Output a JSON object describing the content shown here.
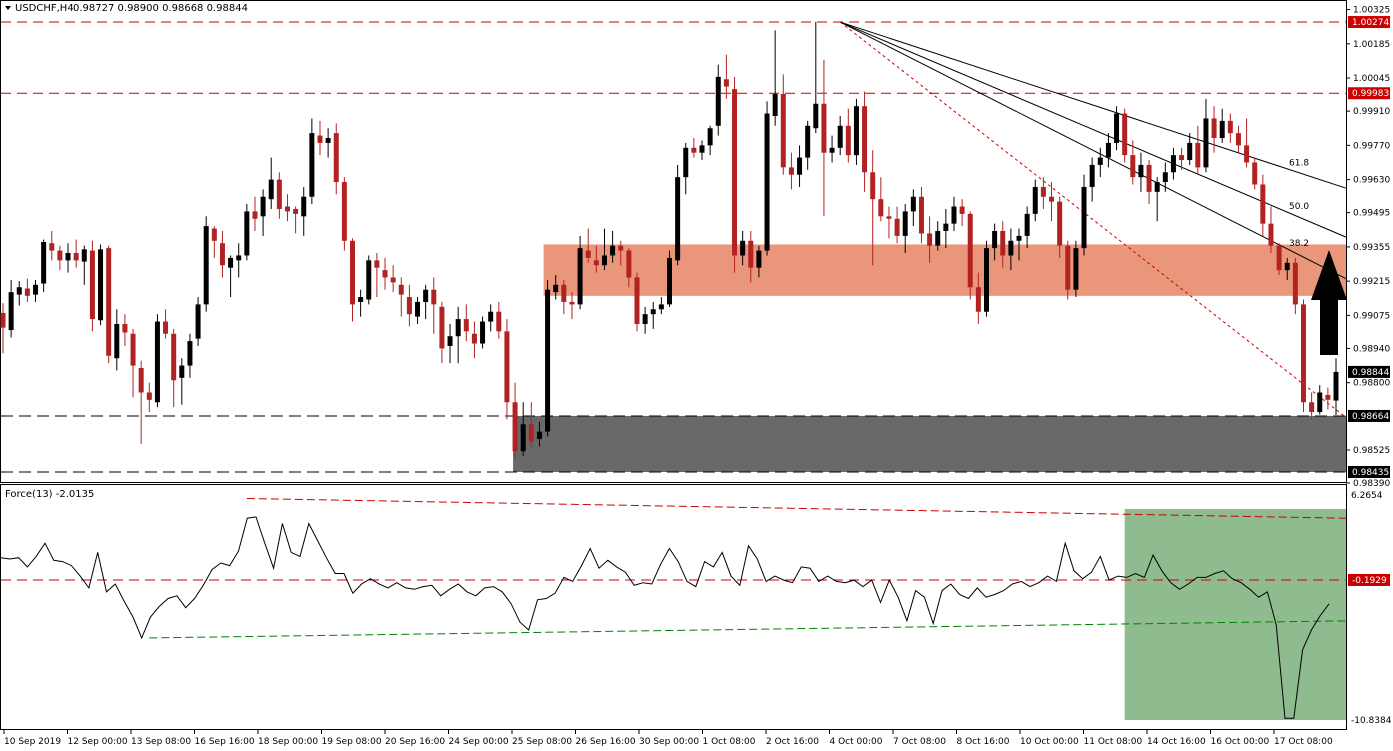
{
  "header": {
    "symbol": "USDCHF,H4",
    "ohlc": "0.98727 0.98900 0.98668 0.98844"
  },
  "force_header": "Force(13) -2.0135",
  "price_axis": {
    "ticks": [
      "1.00325",
      "1.00185",
      "1.00045",
      "0.99910",
      "0.99770",
      "0.99630",
      "0.99495",
      "0.99355",
      "0.99215",
      "0.99075",
      "0.98940",
      "0.98800",
      "0.98525",
      "0.98390"
    ],
    "badges": [
      {
        "text": "1.00274",
        "kind": "red"
      },
      {
        "text": "0.99983",
        "kind": "red"
      },
      {
        "text": "0.98844",
        "kind": "black"
      },
      {
        "text": "0.98664",
        "kind": "black"
      },
      {
        "text": "0.98435",
        "kind": "black"
      }
    ]
  },
  "force_axis": {
    "ticks": [
      "6.2654",
      "-10.8384"
    ],
    "badge": {
      "text": "-0.1929",
      "kind": "red"
    }
  },
  "time_axis": [
    "10 Sep 2019",
    "12 Sep 00:00",
    "13 Sep 08:00",
    "16 Sep 16:00",
    "18 Sep 00:00",
    "19 Sep 08:00",
    "20 Sep 16:00",
    "24 Sep 00:00",
    "25 Sep 08:00",
    "26 Sep 16:00",
    "30 Sep 00:00",
    "1 Oct 08:00",
    "2 Oct 16:00",
    "4 Oct 00:00",
    "7 Oct 08:00",
    "8 Oct 16:00",
    "10 Oct 00:00",
    "11 Oct 08:00",
    "14 Oct 16:00",
    "16 Oct 00:00",
    "17 Oct 08:00"
  ],
  "fib_labels": [
    "38.2",
    "50.0",
    "61.8"
  ],
  "colors": {
    "bull": "#000000",
    "bear": "#b22222",
    "resistance_zone": "#e9967a",
    "support_zone": "#696969",
    "force_zone": "#8fbc8f",
    "level_red": "#cc0000",
    "trend_green": "#008000"
  },
  "chart_data": [
    {
      "type": "candlestick",
      "title": "USDCHF,H4",
      "ylim": [
        0.9839,
        1.0036
      ],
      "levels": [
        1.00274,
        0.99983,
        0.98664,
        0.98435
      ],
      "zones": [
        {
          "name": "resistance",
          "from": 0.99155,
          "to": 0.99365
        },
        {
          "name": "support",
          "from": 0.98435,
          "to": 0.98664
        }
      ],
      "fan": {
        "origin_price": 1.00274,
        "fibs": [
          "38.2",
          "50.0",
          "61.8"
        ],
        "end_prices": [
          0.99225,
          0.99395,
          0.99595
        ]
      },
      "arrow": "up",
      "candles": [
        [
          0.99085,
          0.99125,
          0.9892,
          0.99025
        ],
        [
          0.99015,
          0.9922,
          0.98985,
          0.9917
        ],
        [
          0.9916,
          0.99215,
          0.99115,
          0.9919
        ],
        [
          0.99185,
          0.99225,
          0.9913,
          0.99155
        ],
        [
          0.9916,
          0.9922,
          0.9913,
          0.992
        ],
        [
          0.99205,
          0.99385,
          0.9917,
          0.99375
        ],
        [
          0.9937,
          0.9942,
          0.993,
          0.9934
        ],
        [
          0.9934,
          0.9936,
          0.9926,
          0.993
        ],
        [
          0.993,
          0.9937,
          0.9925,
          0.9933
        ],
        [
          0.9933,
          0.99385,
          0.9927,
          0.993
        ],
        [
          0.99295,
          0.9936,
          0.992,
          0.99345
        ],
        [
          0.9934,
          0.9938,
          0.9901,
          0.9906
        ],
        [
          0.99055,
          0.99365,
          0.99035,
          0.99345
        ],
        [
          0.9935,
          0.9936,
          0.9888,
          0.9891
        ],
        [
          0.989,
          0.991,
          0.9885,
          0.9904
        ],
        [
          0.9904,
          0.9908,
          0.9895,
          0.99005
        ],
        [
          0.99,
          0.9902,
          0.9874,
          0.9887
        ],
        [
          0.9886,
          0.9889,
          0.9855,
          0.9876
        ],
        [
          0.9876,
          0.988,
          0.9868,
          0.9873
        ],
        [
          0.9872,
          0.9908,
          0.987,
          0.9905
        ],
        [
          0.9905,
          0.991,
          0.9898,
          0.99
        ],
        [
          0.99,
          0.9902,
          0.987,
          0.9881
        ],
        [
          0.9882,
          0.989,
          0.9871,
          0.9887
        ],
        [
          0.9887,
          0.99,
          0.9882,
          0.9897
        ],
        [
          0.9898,
          0.9915,
          0.9895,
          0.9912
        ],
        [
          0.9912,
          0.9948,
          0.9909,
          0.9944
        ],
        [
          0.9943,
          0.9944,
          0.9931,
          0.9938
        ],
        [
          0.9937,
          0.9942,
          0.9923,
          0.9928
        ],
        [
          0.9927,
          0.9932,
          0.9915,
          0.9931
        ],
        [
          0.993,
          0.9937,
          0.9923,
          0.9932
        ],
        [
          0.9932,
          0.9953,
          0.993,
          0.995
        ],
        [
          0.995,
          0.9956,
          0.9942,
          0.9947
        ],
        [
          0.9948,
          0.9959,
          0.994,
          0.9956
        ],
        [
          0.9955,
          0.9972,
          0.9951,
          0.9963
        ],
        [
          0.9963,
          0.9966,
          0.9947,
          0.9951
        ],
        [
          0.9952,
          0.9957,
          0.9946,
          0.995
        ],
        [
          0.9951,
          0.9952,
          0.9941,
          0.9949
        ],
        [
          0.9948,
          0.996,
          0.994,
          0.9956
        ],
        [
          0.9956,
          0.9988,
          0.9953,
          0.9982
        ],
        [
          0.9981,
          0.9987,
          0.9973,
          0.9978
        ],
        [
          0.9978,
          0.9984,
          0.9972,
          0.998
        ],
        [
          0.9982,
          0.9986,
          0.9957,
          0.9962
        ],
        [
          0.9962,
          0.9964,
          0.9934,
          0.9938
        ],
        [
          0.9938,
          0.9939,
          0.9905,
          0.9912
        ],
        [
          0.9913,
          0.9918,
          0.9907,
          0.9915
        ],
        [
          0.9914,
          0.9932,
          0.9912,
          0.993
        ],
        [
          0.993,
          0.9933,
          0.9915,
          0.9927
        ],
        [
          0.9926,
          0.9931,
          0.9918,
          0.9923
        ],
        [
          0.9923,
          0.9928,
          0.9917,
          0.9921
        ],
        [
          0.992,
          0.9923,
          0.9907,
          0.9916
        ],
        [
          0.9915,
          0.992,
          0.9903,
          0.9908
        ],
        [
          0.9907,
          0.9915,
          0.9904,
          0.9913
        ],
        [
          0.9913,
          0.992,
          0.9906,
          0.9918
        ],
        [
          0.9918,
          0.9923,
          0.99,
          0.9912
        ],
        [
          0.9911,
          0.9913,
          0.9888,
          0.9894
        ],
        [
          0.9895,
          0.9904,
          0.9888,
          0.9899
        ],
        [
          0.9899,
          0.9911,
          0.9888,
          0.9906
        ],
        [
          0.9906,
          0.9912,
          0.9897,
          0.9901
        ],
        [
          0.99,
          0.9905,
          0.989,
          0.9896
        ],
        [
          0.9896,
          0.9907,
          0.9894,
          0.9905
        ],
        [
          0.9905,
          0.9912,
          0.9901,
          0.9909
        ],
        [
          0.9909,
          0.9913,
          0.9898,
          0.9901
        ],
        [
          0.9901,
          0.9906,
          0.9865,
          0.9872
        ],
        [
          0.9872,
          0.988,
          0.9849,
          0.9852
        ],
        [
          0.9852,
          0.9872,
          0.985,
          0.9863
        ],
        [
          0.9863,
          0.9872,
          0.9853,
          0.9856
        ],
        [
          0.9857,
          0.9864,
          0.9854,
          0.986
        ],
        [
          0.986,
          0.9922,
          0.9858,
          0.9918
        ],
        [
          0.9917,
          0.9924,
          0.9914,
          0.992
        ],
        [
          0.992,
          0.9922,
          0.9908,
          0.9913
        ],
        [
          0.9913,
          0.9917,
          0.9906,
          0.9912
        ],
        [
          0.9912,
          0.994,
          0.991,
          0.9935
        ],
        [
          0.9934,
          0.9943,
          0.9929,
          0.9931
        ],
        [
          0.993,
          0.9936,
          0.9925,
          0.9928
        ],
        [
          0.9928,
          0.9943,
          0.9926,
          0.9932
        ],
        [
          0.9932,
          0.9942,
          0.9929,
          0.9936
        ],
        [
          0.9936,
          0.9938,
          0.9928,
          0.9934
        ],
        [
          0.9934,
          0.9935,
          0.9919,
          0.9923
        ],
        [
          0.9923,
          0.9925,
          0.9901,
          0.9904
        ],
        [
          0.9904,
          0.9911,
          0.99,
          0.9908
        ],
        [
          0.9908,
          0.9913,
          0.9902,
          0.991
        ],
        [
          0.991,
          0.9915,
          0.9908,
          0.9912
        ],
        [
          0.9912,
          0.9934,
          0.9911,
          0.9931
        ],
        [
          0.993,
          0.9969,
          0.9928,
          0.9964
        ],
        [
          0.9964,
          0.9978,
          0.9957,
          0.9976
        ],
        [
          0.9976,
          0.998,
          0.9972,
          0.9974
        ],
        [
          0.9974,
          0.9979,
          0.9971,
          0.9977
        ],
        [
          0.9977,
          0.9985,
          0.9973,
          0.9984
        ],
        [
          0.9985,
          1.001,
          0.9981,
          1.0005
        ],
        [
          1.0004,
          1.0014,
          0.9996,
          1.0001
        ],
        [
          1.0,
          1.0005,
          0.9925,
          0.9932
        ],
        [
          0.9932,
          0.9942,
          0.9928,
          0.9938
        ],
        [
          0.9938,
          0.9942,
          0.9921,
          0.9927
        ],
        [
          0.9927,
          0.9936,
          0.9923,
          0.9934
        ],
        [
          0.9934,
          0.9995,
          0.9932,
          0.999
        ],
        [
          0.9989,
          1.0024,
          0.9985,
          0.9998
        ],
        [
          0.9998,
          1.0006,
          0.9965,
          0.9968
        ],
        [
          0.9968,
          0.9974,
          0.9959,
          0.9965
        ],
        [
          0.9965,
          0.9977,
          0.996,
          0.9972
        ],
        [
          0.9972,
          0.9987,
          0.9967,
          0.9985
        ],
        [
          0.9984,
          1.00274,
          0.9982,
          0.9994
        ],
        [
          0.9994,
          1.0012,
          0.9948,
          0.9974
        ],
        [
          0.9974,
          0.9981,
          0.997,
          0.9976
        ],
        [
          0.9976,
          0.9989,
          0.9973,
          0.9985
        ],
        [
          0.9985,
          0.9992,
          0.997,
          0.9973
        ],
        [
          0.9973,
          0.9996,
          0.9969,
          0.9993
        ],
        [
          0.9993,
          0.9999,
          0.9958,
          0.9966
        ],
        [
          0.9966,
          0.9975,
          0.9928,
          0.9955
        ],
        [
          0.9955,
          0.9964,
          0.9946,
          0.9948
        ],
        [
          0.9948,
          0.9952,
          0.9939,
          0.9947
        ],
        [
          0.9947,
          0.9952,
          0.9937,
          0.994
        ],
        [
          0.994,
          0.9953,
          0.9933,
          0.995
        ],
        [
          0.995,
          0.9959,
          0.9944,
          0.9956
        ],
        [
          0.9956,
          0.996,
          0.9937,
          0.9941
        ],
        [
          0.9941,
          0.9948,
          0.9929,
          0.9936
        ],
        [
          0.9936,
          0.9946,
          0.9934,
          0.9942
        ],
        [
          0.9942,
          0.9951,
          0.9935,
          0.9945
        ],
        [
          0.9945,
          0.9956,
          0.9942,
          0.9952
        ],
        [
          0.9952,
          0.9955,
          0.9944,
          0.9949
        ],
        [
          0.9949,
          0.995,
          0.9914,
          0.9919
        ],
        [
          0.9919,
          0.9925,
          0.9904,
          0.9909
        ],
        [
          0.9909,
          0.9938,
          0.9907,
          0.9935
        ],
        [
          0.9935,
          0.9945,
          0.993,
          0.9942
        ],
        [
          0.9942,
          0.9946,
          0.9927,
          0.9932
        ],
        [
          0.9932,
          0.9943,
          0.9926,
          0.9938
        ],
        [
          0.9938,
          0.9943,
          0.993,
          0.994
        ],
        [
          0.994,
          0.9952,
          0.9935,
          0.9949
        ],
        [
          0.9949,
          0.9963,
          0.9946,
          0.996
        ],
        [
          0.996,
          0.9964,
          0.9951,
          0.9956
        ],
        [
          0.9956,
          0.9962,
          0.9946,
          0.9954
        ],
        [
          0.9954,
          0.9956,
          0.9931,
          0.9936
        ],
        [
          0.9936,
          0.9938,
          0.9914,
          0.9918
        ],
        [
          0.9918,
          0.9938,
          0.9915,
          0.9935
        ],
        [
          0.9935,
          0.9965,
          0.9932,
          0.996
        ],
        [
          0.996,
          0.9972,
          0.9954,
          0.9969
        ],
        [
          0.9969,
          0.9976,
          0.9964,
          0.9972
        ],
        [
          0.9972,
          0.9982,
          0.9968,
          0.9978
        ],
        [
          0.9978,
          0.9993,
          0.9975,
          0.999
        ],
        [
          0.999,
          0.9992,
          0.997,
          0.9973
        ],
        [
          0.9973,
          0.9979,
          0.9961,
          0.9964
        ],
        [
          0.9964,
          0.9974,
          0.9958,
          0.9969
        ],
        [
          0.9969,
          0.9971,
          0.9953,
          0.9958
        ],
        [
          0.9958,
          0.9964,
          0.9946,
          0.9962
        ],
        [
          0.9962,
          0.997,
          0.9958,
          0.9966
        ],
        [
          0.9966,
          0.9976,
          0.9963,
          0.9973
        ],
        [
          0.9973,
          0.9976,
          0.9967,
          0.9971
        ],
        [
          0.9971,
          0.9982,
          0.9969,
          0.9978
        ],
        [
          0.9978,
          0.9985,
          0.9965,
          0.9968
        ],
        [
          0.9968,
          0.9996,
          0.9966,
          0.9988
        ],
        [
          0.9988,
          0.9993,
          0.9974,
          0.998
        ],
        [
          0.998,
          0.9992,
          0.9978,
          0.9987
        ],
        [
          0.9987,
          0.999,
          0.9978,
          0.9982
        ],
        [
          0.9982,
          0.9985,
          0.9974,
          0.9977
        ],
        [
          0.9977,
          0.9988,
          0.9968,
          0.997
        ],
        [
          0.997,
          0.9972,
          0.9959,
          0.9961
        ],
        [
          0.9961,
          0.9965,
          0.994,
          0.9945
        ],
        [
          0.9945,
          0.9952,
          0.9933,
          0.9936
        ],
        [
          0.9936,
          0.9937,
          0.9924,
          0.9926
        ],
        [
          0.9926,
          0.9931,
          0.9922,
          0.9929
        ],
        [
          0.9929,
          0.9931,
          0.9908,
          0.9912
        ],
        [
          0.9912,
          0.9914,
          0.9868,
          0.9872
        ],
        [
          0.9872,
          0.9876,
          0.9865,
          0.9868
        ],
        [
          0.9868,
          0.9879,
          0.9867,
          0.9876
        ],
        [
          0.9875,
          0.9878,
          0.9869,
          0.9873
        ],
        [
          0.98727,
          0.989,
          0.98668,
          0.98844
        ]
      ]
    },
    {
      "type": "line",
      "title": "Force(13) -2.0135",
      "ylim": [
        -10.8384,
        6.2654
      ],
      "levels": [
        -0.1929
      ],
      "trendline": [
        -4.6,
        -3.3
      ],
      "values": [
        1.5,
        1.4,
        1.5,
        0.8,
        1.6,
        2.6,
        1.3,
        1.2,
        0.9,
        0.1,
        -0.8,
        1.9,
        -1.1,
        -0.5,
        -1.8,
        -3.0,
        -4.6,
        -3.0,
        -2.2,
        -1.6,
        -1.4,
        -2.3,
        -1.6,
        -0.6,
        0.6,
        1.1,
        0.9,
        2.0,
        4.5,
        4.6,
        2.6,
        0.7,
        4.1,
        1.9,
        1.6,
        4.1,
        2.8,
        1.5,
        0.3,
        0.3,
        -1.2,
        -0.5,
        -0.1,
        -0.5,
        -0.8,
        -0.4,
        -0.8,
        -0.9,
        -0.7,
        -0.6,
        -1.4,
        -0.9,
        -0.5,
        -1.1,
        -1.4,
        -0.8,
        -0.7,
        -1.1,
        -2.0,
        -3.4,
        -4.0,
        -1.7,
        -1.6,
        -1.2,
        0.0,
        -0.3,
        0.9,
        2.2,
        0.7,
        1.3,
        0.8,
        0.4,
        -0.6,
        -0.4,
        -0.5,
        1.0,
        2.2,
        1.2,
        -0.3,
        -0.7,
        1.2,
        0.8,
        1.9,
        0.1,
        -0.6,
        2.4,
        1.4,
        -0.3,
        0.1,
        -0.2,
        -0.4,
        0.8,
        0.7,
        -0.3,
        0.1,
        -0.3,
        -0.4,
        -0.2,
        -0.7,
        -0.2,
        -1.9,
        -0.2,
        -1.5,
        -3.3,
        -1.0,
        -1.5,
        -3.5,
        -1.0,
        -0.5,
        -1.3,
        -1.6,
        -0.8,
        -1.5,
        -1.3,
        -1.0,
        -0.5,
        -0.3,
        -0.7,
        -0.4,
        0.1,
        -0.3,
        2.6,
        0.5,
        -0.1,
        0.4,
        1.6,
        -0.2,
        0.1,
        0.0,
        0.3,
        0.0,
        1.7,
        0.5,
        -0.4,
        -0.9,
        -0.5,
        0.0,
        0.0,
        0.3,
        0.5,
        -0.1,
        -0.4,
        -0.9,
        -1.5,
        -1.1,
        -3.6,
        -10.7,
        -10.7,
        -5.5,
        -4.0,
        -2.9,
        -2.0135
      ]
    }
  ]
}
